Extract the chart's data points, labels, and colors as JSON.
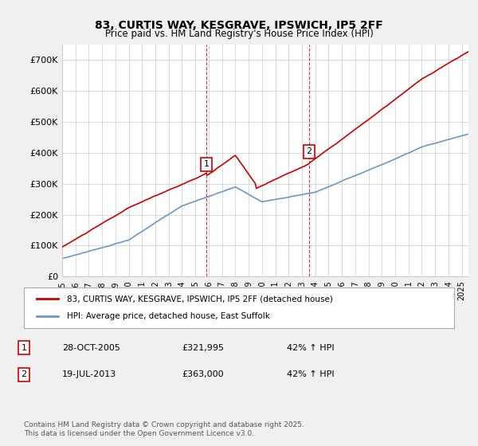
{
  "title": "83, CURTIS WAY, KESGRAVE, IPSWICH, IP5 2FF",
  "subtitle": "Price paid vs. HM Land Registry's House Price Index (HPI)",
  "ylabel": "",
  "xlim_start": 1995.0,
  "xlim_end": 2025.5,
  "ylim_min": 0,
  "ylim_max": 750000,
  "yticks": [
    0,
    100000,
    200000,
    300000,
    400000,
    500000,
    600000,
    700000
  ],
  "ytick_labels": [
    "£0",
    "£100K",
    "£200K",
    "£300K",
    "£400K",
    "£500K",
    "£600K",
    "£700K"
  ],
  "red_line_color": "#cc0000",
  "blue_line_color": "#6699cc",
  "marker1_x": 2005.82,
  "marker1_y": 321995,
  "marker2_x": 2013.55,
  "marker2_y": 363000,
  "vline1_x": 2005.82,
  "vline2_x": 2013.55,
  "vline_color": "#cc0000",
  "legend_label_red": "83, CURTIS WAY, KESGRAVE, IPSWICH, IP5 2FF (detached house)",
  "legend_label_blue": "HPI: Average price, detached house, East Suffolk",
  "annotation1_label": "1",
  "annotation2_label": "2",
  "table_row1": [
    "1",
    "28-OCT-2005",
    "£321,995",
    "42% ↑ HPI"
  ],
  "table_row2": [
    "2",
    "19-JUL-2013",
    "£363,000",
    "42% ↑ HPI"
  ],
  "footer": "Contains HM Land Registry data © Crown copyright and database right 2025.\nThis data is licensed under the Open Government Licence v3.0.",
  "background_color": "#f0f0f0",
  "plot_bg_color": "#ffffff",
  "xticks": [
    1995,
    1996,
    1997,
    1998,
    1999,
    2000,
    2001,
    2002,
    2003,
    2004,
    2005,
    2006,
    2007,
    2008,
    2009,
    2010,
    2011,
    2012,
    2013,
    2014,
    2015,
    2016,
    2017,
    2018,
    2019,
    2020,
    2021,
    2022,
    2023,
    2024,
    2025
  ]
}
